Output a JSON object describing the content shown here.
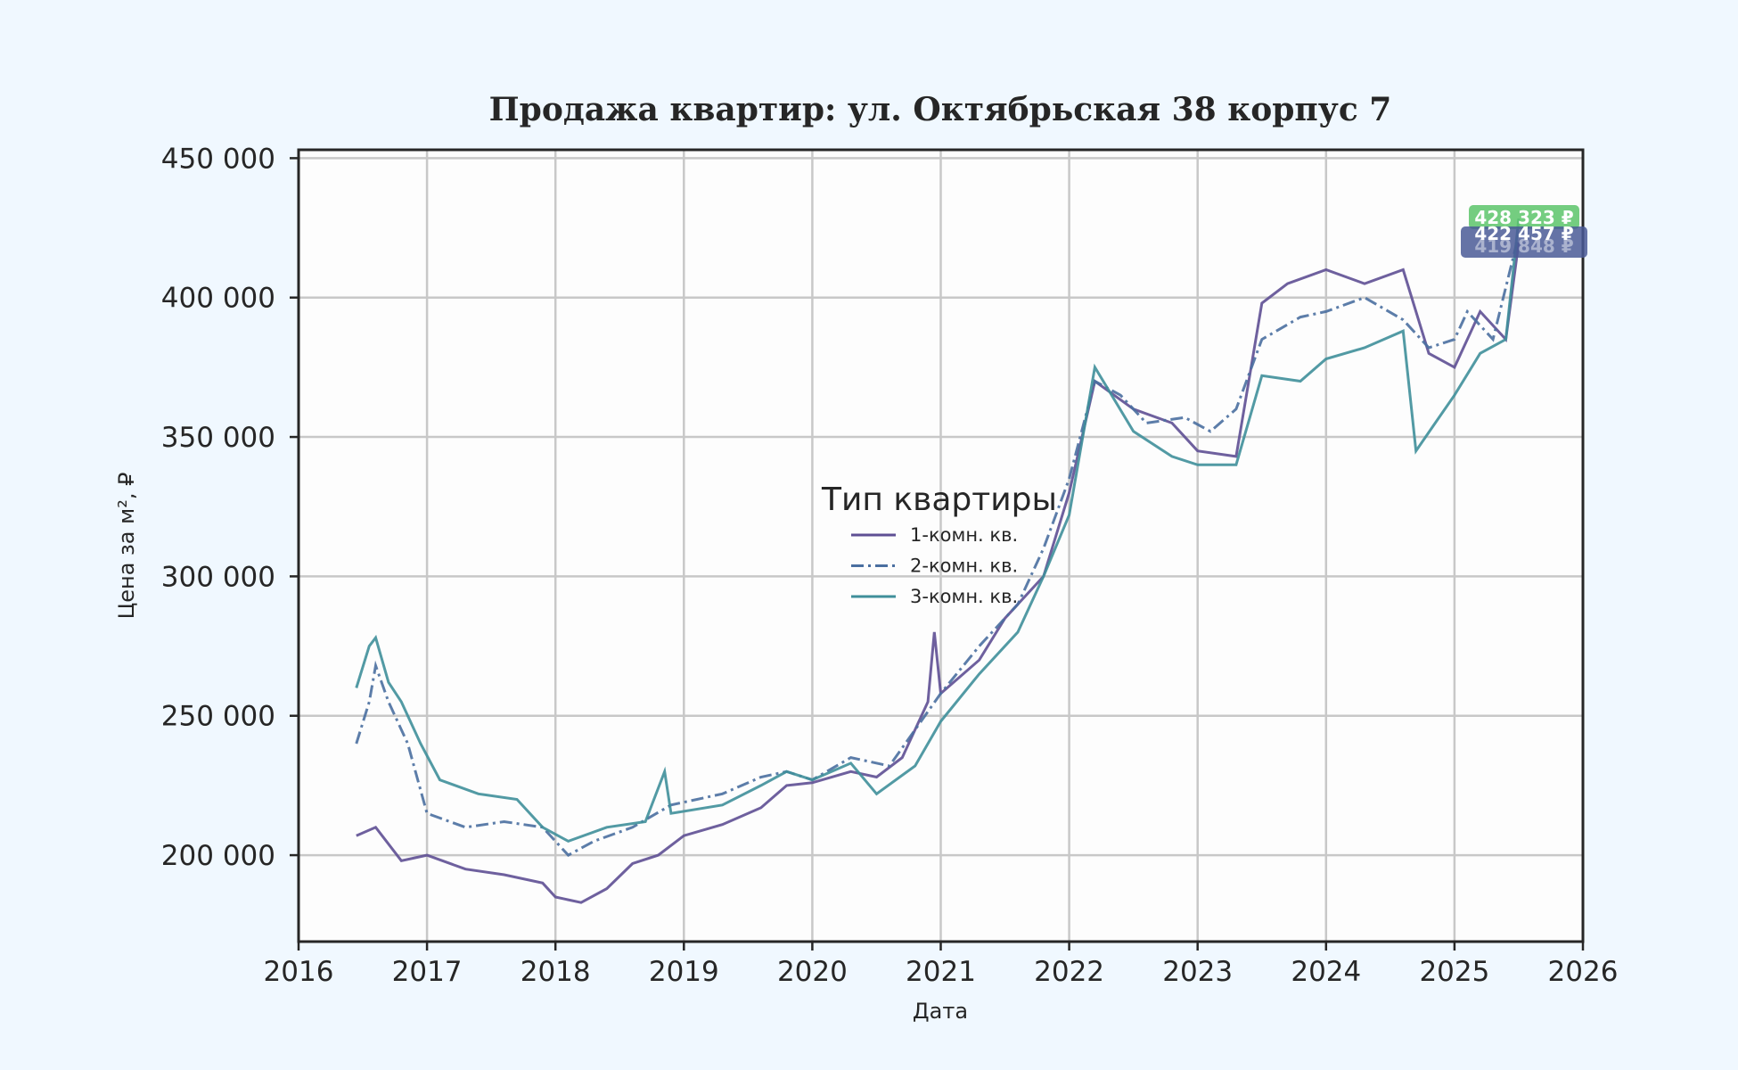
{
  "chart_data": {
    "type": "line",
    "title": "Продажа квартир: ул. Октябрьская 38 корпус 7",
    "xlabel": "Дата",
    "ylabel": "Цена за м², ₽",
    "xlim": [
      2016,
      2026
    ],
    "ylim": [
      169000,
      453000
    ],
    "xticks": [
      "2016",
      "2017",
      "2018",
      "2019",
      "2020",
      "2021",
      "2022",
      "2023",
      "2024",
      "2025",
      "2026"
    ],
    "yticks": [
      200000,
      250000,
      300000,
      350000,
      400000,
      450000
    ],
    "ytick_labels": [
      "200 000",
      "250 000",
      "300 000",
      "350 000",
      "400 000",
      "450 000"
    ],
    "grid": true,
    "legend": {
      "title": "Тип квартиры",
      "placement": "center"
    },
    "series": [
      {
        "name": "1-комн. кв.",
        "color": "#5e4f94",
        "dash": "solid",
        "x": [
          2016.45,
          2016.6,
          2016.8,
          2017.0,
          2017.3,
          2017.6,
          2017.9,
          2018.0,
          2018.2,
          2018.4,
          2018.6,
          2018.8,
          2019.0,
          2019.3,
          2019.6,
          2019.8,
          2020.0,
          2020.3,
          2020.5,
          2020.7,
          2020.9,
          2020.95,
          2021.0,
          2021.3,
          2021.5,
          2021.8,
          2022.0,
          2022.2,
          2022.5,
          2022.8,
          2023.0,
          2023.3,
          2023.5,
          2023.7,
          2024.0,
          2024.3,
          2024.6,
          2024.8,
          2025.0,
          2025.2,
          2025.4,
          2025.5
        ],
        "y": [
          207000,
          210000,
          198000,
          200000,
          195000,
          193000,
          190000,
          185000,
          183000,
          188000,
          197000,
          200000,
          207000,
          211000,
          217000,
          225000,
          226000,
          230000,
          228000,
          235000,
          255000,
          280000,
          258000,
          270000,
          285000,
          300000,
          330000,
          370000,
          360000,
          355000,
          345000,
          343000,
          398000,
          405000,
          410000,
          405000,
          410000,
          380000,
          375000,
          395000,
          385000,
          419848
        ]
      },
      {
        "name": "2-комн. кв.",
        "color": "#4a6fa0",
        "dash": "dashdot",
        "x": [
          2016.45,
          2016.55,
          2016.6,
          2016.7,
          2016.85,
          2017.0,
          2017.3,
          2017.6,
          2017.9,
          2018.1,
          2018.3,
          2018.6,
          2018.9,
          2019.3,
          2019.6,
          2019.8,
          2020.0,
          2020.3,
          2020.6,
          2020.8,
          2021.0,
          2021.3,
          2021.6,
          2021.8,
          2022.0,
          2022.2,
          2022.4,
          2022.6,
          2022.9,
          2023.1,
          2023.3,
          2023.5,
          2023.8,
          2024.0,
          2024.3,
          2024.6,
          2024.8,
          2025.0,
          2025.1,
          2025.3,
          2025.5
        ],
        "y": [
          240000,
          255000,
          268000,
          255000,
          240000,
          215000,
          210000,
          212000,
          210000,
          200000,
          205000,
          210000,
          218000,
          222000,
          228000,
          230000,
          227000,
          235000,
          232000,
          245000,
          258000,
          275000,
          290000,
          310000,
          335000,
          370000,
          365000,
          355000,
          357000,
          352000,
          360000,
          385000,
          393000,
          395000,
          400000,
          392000,
          382000,
          385000,
          395000,
          385000,
          422457
        ]
      },
      {
        "name": "3-комн. кв.",
        "color": "#3f8f9a",
        "dash": "solid",
        "x": [
          2016.45,
          2016.55,
          2016.6,
          2016.7,
          2016.8,
          2016.95,
          2017.1,
          2017.4,
          2017.7,
          2017.9,
          2018.1,
          2018.4,
          2018.7,
          2018.85,
          2018.9,
          2019.3,
          2019.6,
          2019.8,
          2020.0,
          2020.3,
          2020.5,
          2020.8,
          2021.0,
          2021.3,
          2021.6,
          2021.8,
          2022.0,
          2022.2,
          2022.5,
          2022.8,
          2023.0,
          2023.3,
          2023.5,
          2023.8,
          2024.0,
          2024.3,
          2024.6,
          2024.7,
          2024.85,
          2025.0,
          2025.2,
          2025.4,
          2025.5
        ],
        "y": [
          260000,
          275000,
          278000,
          262000,
          255000,
          240000,
          227000,
          222000,
          220000,
          210000,
          205000,
          210000,
          212000,
          230000,
          215000,
          218000,
          225000,
          230000,
          227000,
          233000,
          222000,
          232000,
          248000,
          265000,
          280000,
          300000,
          322000,
          375000,
          352000,
          343000,
          340000,
          340000,
          372000,
          370000,
          378000,
          382000,
          388000,
          345000,
          355000,
          365000,
          380000,
          385000,
          428323
        ]
      }
    ],
    "annotations": [
      {
        "text": "428 323 ₽",
        "color": "#5cc46a"
      },
      {
        "text": "419 848 ₽",
        "color": "#4a5a96"
      },
      {
        "text": "422 457 ₽",
        "color": "#2f7f8a"
      }
    ]
  }
}
